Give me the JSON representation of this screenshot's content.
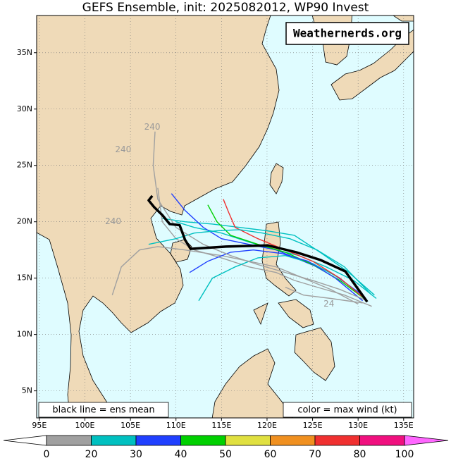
{
  "title": "GEFS Ensemble, init: 2025082012, WP90 Invest",
  "watermark": "Weathernerds.org",
  "legend_left": "black line = ens mean",
  "legend_right": "color = max wind (kt)",
  "map": {
    "lon_range": [
      94.7,
      136.1
    ],
    "lat_range": [
      2.6,
      38.3
    ],
    "lon_ticks": [
      {
        "value": 95,
        "label": "95E"
      },
      {
        "value": 100,
        "label": "100E"
      },
      {
        "value": 105,
        "label": "105E"
      },
      {
        "value": 110,
        "label": "110E"
      },
      {
        "value": 115,
        "label": "115E"
      },
      {
        "value": 120,
        "label": "120E"
      },
      {
        "value": 125,
        "label": "125E"
      },
      {
        "value": 130,
        "label": "130E"
      },
      {
        "value": 135,
        "label": "135E"
      }
    ],
    "lat_ticks": [
      {
        "value": 5,
        "label": "5N"
      },
      {
        "value": 10,
        "label": "10N"
      },
      {
        "value": 15,
        "label": "15N"
      },
      {
        "value": 20,
        "label": "20N"
      },
      {
        "value": 25,
        "label": "25N"
      },
      {
        "value": 30,
        "label": "30N"
      },
      {
        "value": 35,
        "label": "35N"
      }
    ]
  },
  "mean_track": {
    "lon": [
      131.0,
      128.6,
      125.9,
      123.2,
      120.1,
      115.5,
      111.6,
      111.0,
      110.4,
      109.3,
      108.5,
      107.6,
      107.0,
      107.4
    ],
    "lat": [
      12.9,
      15.6,
      16.6,
      17.3,
      17.9,
      17.8,
      17.6,
      18.4,
      19.7,
      19.8,
      20.6,
      21.3,
      21.9,
      22.3
    ]
  },
  "members": [
    {
      "color": "#00c0c0",
      "lon": [
        131.8,
        129,
        126,
        123,
        120,
        117,
        114,
        111,
        108.5
      ],
      "lat": [
        13.5,
        15.5,
        17.2,
        18.8,
        19.2,
        19.5,
        19.8,
        20,
        20.3
      ]
    },
    {
      "color": "#00c0c0",
      "lon": [
        132,
        129.5,
        126.5,
        123.5,
        121,
        118,
        115,
        112,
        110
      ],
      "lat": [
        13.2,
        14.8,
        16,
        17,
        17.5,
        18.2,
        19,
        19.5,
        20
      ]
    },
    {
      "color": "#a0a0a0",
      "lon": [
        131.5,
        128.5,
        125.5,
        123,
        121,
        118,
        115,
        112,
        110,
        108.5,
        108
      ],
      "lat": [
        12.5,
        13.5,
        14.2,
        14.8,
        15.5,
        16,
        16.8,
        17.5,
        18.5,
        20,
        23
      ]
    },
    {
      "color": "#a0a0a0",
      "lon": [
        130.5,
        127,
        124,
        122
      ],
      "lat": [
        12.8,
        13.2,
        13.5,
        14.2
      ]
    },
    {
      "color": "#2040ff",
      "lon": [
        130.5,
        127,
        124,
        121,
        118,
        115,
        113,
        111,
        109.5
      ],
      "lat": [
        13.5,
        15.5,
        16.5,
        17.5,
        18,
        18.5,
        19.5,
        21,
        22.5
      ]
    },
    {
      "color": "#00c0c0",
      "lon": [
        131,
        128,
        125,
        122,
        119,
        116.5,
        114,
        112.5
      ],
      "lat": [
        13,
        15,
        16.3,
        17,
        16.8,
        16,
        15,
        13
      ]
    },
    {
      "color": "#00d000",
      "lon": [
        131,
        128,
        125,
        122,
        119,
        116,
        114.5,
        113.5
      ],
      "lat": [
        13,
        14.8,
        16.2,
        17.3,
        18,
        18.8,
        20,
        21.5
      ]
    },
    {
      "color": "#f03030",
      "lon": [
        131,
        128,
        125,
        122,
        119,
        116.5,
        115.8,
        115.2
      ],
      "lat": [
        13,
        15,
        16.5,
        17.5,
        18.5,
        19.5,
        20.8,
        22
      ]
    },
    {
      "color": "#a0a0a0",
      "lon": [
        130,
        127,
        124,
        121,
        118,
        115,
        111,
        108,
        106,
        104,
        103
      ],
      "lat": [
        12.7,
        14,
        15,
        16,
        16.5,
        17,
        17.5,
        17.8,
        17.5,
        16,
        13.5
      ]
    },
    {
      "color": "#00c0c0",
      "lon": [
        131.5,
        128.5,
        125.5,
        122.5,
        119.5,
        117,
        114.5,
        112,
        110,
        107
      ],
      "lat": [
        13.5,
        16,
        17.5,
        18.5,
        19,
        19.3,
        19.2,
        19,
        18.5,
        18
      ]
    },
    {
      "color": "#2040ff",
      "lon": [
        130.5,
        127.5,
        124.5,
        121.5,
        118.5,
        116,
        113.5,
        111.5
      ],
      "lat": [
        13,
        15,
        16.5,
        17.2,
        17.5,
        17.3,
        16.5,
        15.5
      ]
    },
    {
      "color": "#a0a0a0",
      "lon": [
        131,
        128,
        125,
        122,
        119,
        116,
        113,
        110,
        108,
        107.5,
        107.7
      ],
      "lat": [
        13,
        14,
        14.8,
        15.5,
        16.2,
        17,
        18,
        19.5,
        22,
        25,
        28
      ]
    }
  ],
  "track_labels": [
    {
      "text": "240",
      "lon": 107.4,
      "lat": 28.4
    },
    {
      "text": "240",
      "lon": 104.2,
      "lat": 26.4
    },
    {
      "text": "240",
      "lon": 103.1,
      "lat": 20.0
    },
    {
      "text": "24",
      "lon": 126.8,
      "lat": 12.7
    }
  ],
  "colorbar": {
    "bins": [
      0,
      20,
      30,
      40,
      50,
      60,
      70,
      80,
      100
    ],
    "colors": [
      "#a0a0a0",
      "#00c0c0",
      "#2040ff",
      "#00d000",
      "#e0e040",
      "#f09020",
      "#f03030",
      "#f0107f"
    ],
    "under_color": "#ffffff",
    "over_color": "#ff66ff"
  }
}
